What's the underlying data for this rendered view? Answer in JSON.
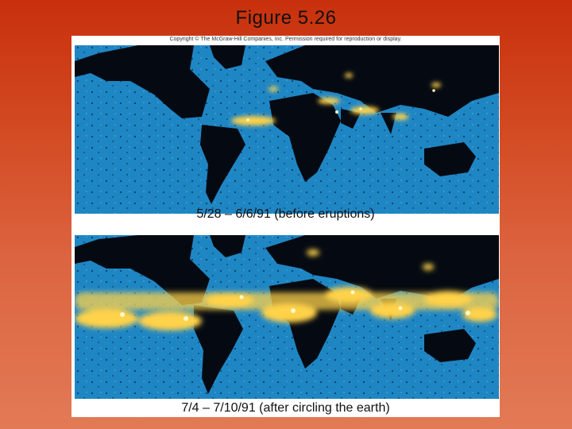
{
  "slide": {
    "title": "Figure 5.26"
  },
  "figure": {
    "copyright": "Copyright © The McGraw-Hill Companies, Inc. Permission required for reproduction or display.",
    "panels": [
      {
        "caption": "5/28 – 6/6/91 (before eruptions)"
      },
      {
        "caption": "7/4 – 7/10/91 (after circling the earth)"
      }
    ],
    "colors": {
      "ocean": "#1f86c4",
      "land": "#050a12",
      "aerosol": "#ffd24a"
    }
  }
}
